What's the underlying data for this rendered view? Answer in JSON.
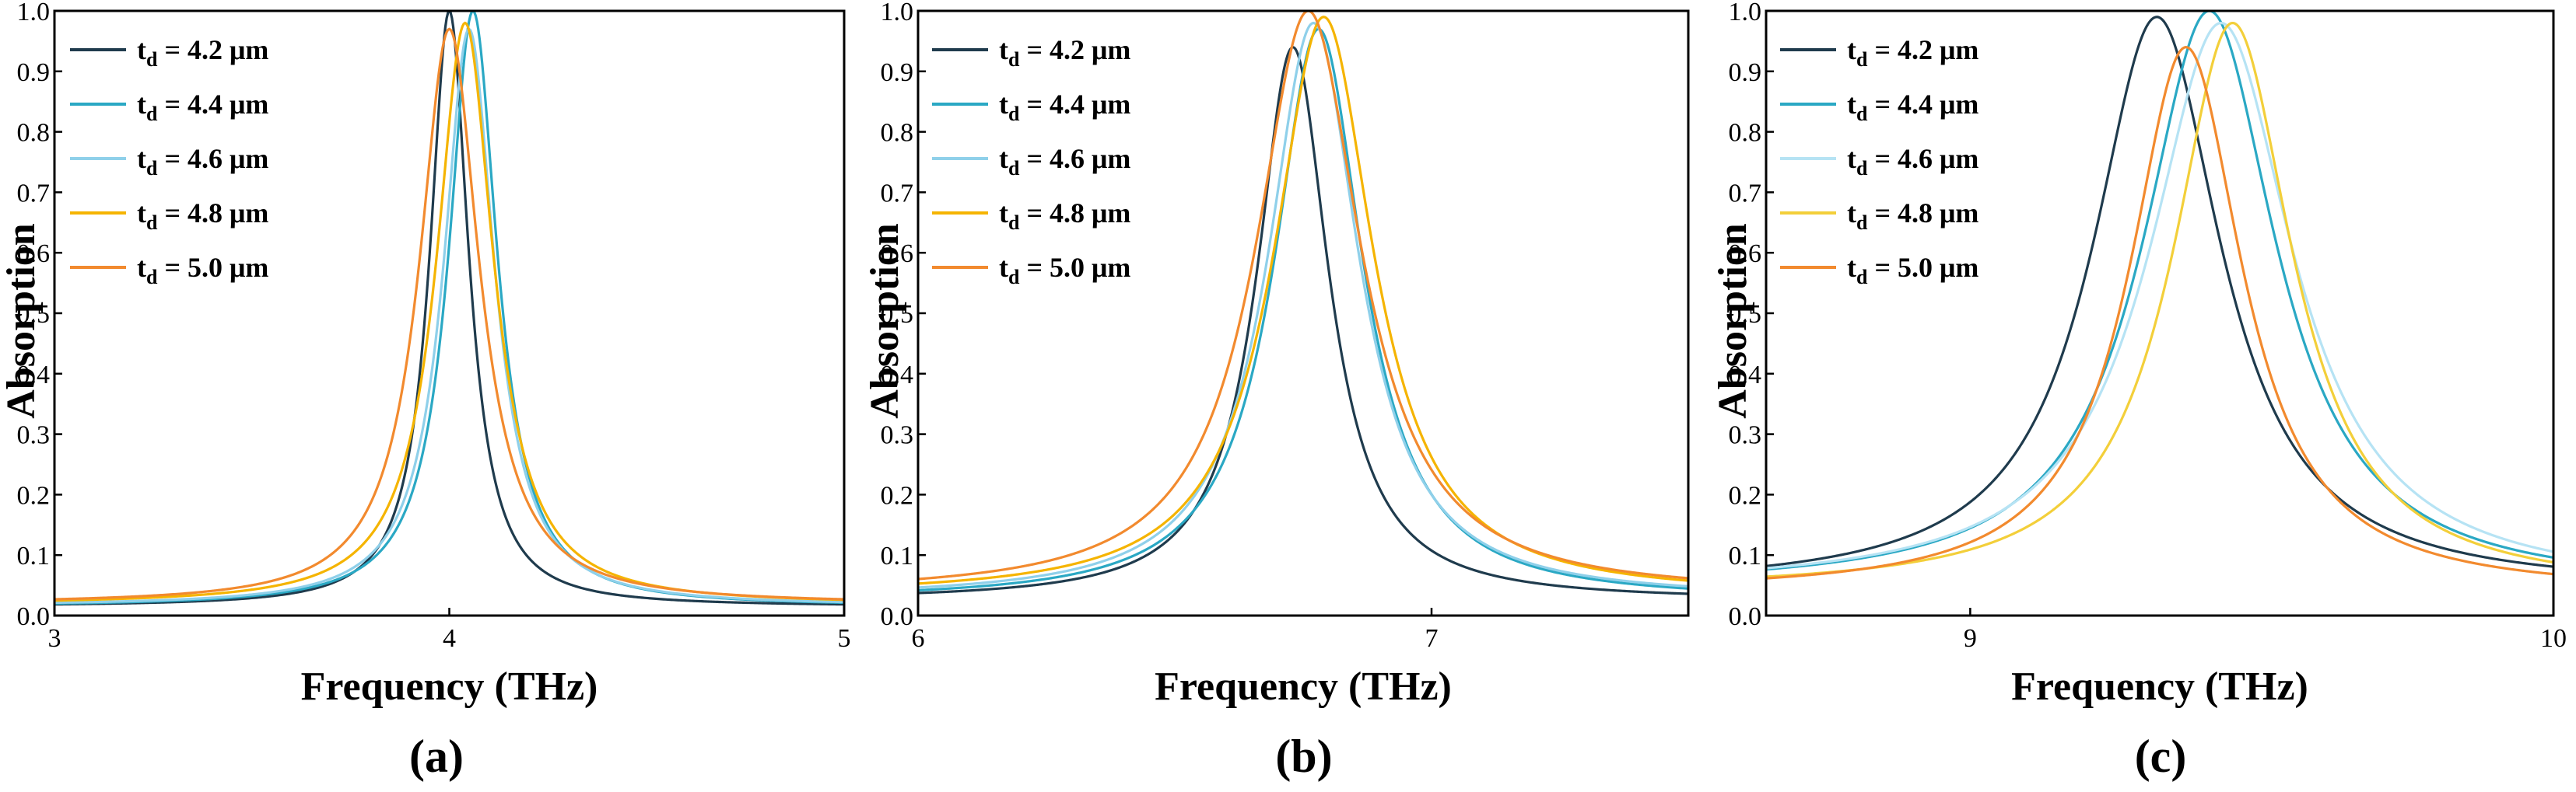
{
  "chart_data": [
    {
      "type": "line",
      "panel_label": "(a)",
      "xlabel": "Frequency (THz)",
      "ylabel": "Absorption",
      "xlim": [
        3,
        5
      ],
      "ylim": [
        0,
        1
      ],
      "xticks": [
        "3",
        "4",
        "5"
      ],
      "yticks": [
        "0.0",
        "0.1",
        "0.2",
        "0.3",
        "0.4",
        "0.5",
        "0.6",
        "0.7",
        "0.8",
        "0.9",
        "1.0"
      ],
      "legend_position": "top-left",
      "series": [
        {
          "name": "4.2",
          "color": "#1f3b4d",
          "f0": 4.0,
          "peak": 1.0,
          "gamma": 0.06,
          "base": 0.015
        },
        {
          "name": "4.4",
          "color": "#2aa8c4",
          "f0": 4.06,
          "peak": 1.0,
          "gamma": 0.075,
          "base": 0.015
        },
        {
          "name": "4.6",
          "color": "#8fd0ea",
          "f0": 4.05,
          "peak": 0.97,
          "gamma": 0.078,
          "base": 0.016
        },
        {
          "name": "4.8",
          "color": "#f5b400",
          "f0": 4.04,
          "peak": 0.98,
          "gamma": 0.088,
          "base": 0.018
        },
        {
          "name": "5.0",
          "color": "#f28a2e",
          "f0": 4.0,
          "peak": 0.97,
          "gamma": 0.092,
          "base": 0.019
        }
      ]
    },
    {
      "type": "line",
      "panel_label": "(b)",
      "xlabel": "Frequency (THz)",
      "ylabel": "Absorption",
      "xlim": [
        6,
        7.5
      ],
      "ylim": [
        0,
        1
      ],
      "xticks": [
        "6",
        "7"
      ],
      "yticks": [
        "0.0",
        "0.1",
        "0.2",
        "0.3",
        "0.4",
        "0.5",
        "0.6",
        "0.7",
        "0.8",
        "0.9",
        "1.0"
      ],
      "legend_position": "top-left",
      "series": [
        {
          "name": "4.2",
          "color": "#1f3b4d",
          "f0": 6.73,
          "peak": 0.94,
          "gamma": 0.085,
          "base": 0.025
        },
        {
          "name": "4.4",
          "color": "#2aa8c4",
          "f0": 6.78,
          "peak": 0.97,
          "gamma": 0.105,
          "base": 0.025
        },
        {
          "name": "4.6",
          "color": "#8fd0ea",
          "f0": 6.77,
          "peak": 0.98,
          "gamma": 0.108,
          "base": 0.028
        },
        {
          "name": "4.8",
          "color": "#f5b400",
          "f0": 6.79,
          "peak": 0.99,
          "gamma": 0.118,
          "base": 0.032
        },
        {
          "name": "5.0",
          "color": "#f28a2e",
          "f0": 6.76,
          "peak": 1.0,
          "gamma": 0.125,
          "base": 0.035
        }
      ]
    },
    {
      "type": "line",
      "panel_label": "(c)",
      "xlabel": "Frequency (THz)",
      "ylabel": "Absorption",
      "xlim": [
        8.65,
        10
      ],
      "ylim": [
        0,
        1
      ],
      "xticks": [
        "9",
        "10"
      ],
      "yticks": [
        "0.0",
        "0.1",
        "0.2",
        "0.3",
        "0.4",
        "0.5",
        "0.6",
        "0.7",
        "0.8",
        "0.9",
        "1.0"
      ],
      "legend_position": "top-left",
      "series": [
        {
          "name": "4.2",
          "color": "#1f3b4d",
          "f0": 9.32,
          "peak": 0.99,
          "gamma": 0.135,
          "base": 0.045
        },
        {
          "name": "4.4",
          "color": "#2aa8c4",
          "f0": 9.41,
          "peak": 1.0,
          "gamma": 0.14,
          "base": 0.045
        },
        {
          "name": "4.6",
          "color": "#b6e3f4",
          "f0": 9.43,
          "peak": 0.98,
          "gamma": 0.15,
          "base": 0.045
        },
        {
          "name": "4.8",
          "color": "#f3cf3a",
          "f0": 9.45,
          "peak": 0.98,
          "gamma": 0.125,
          "base": 0.042
        },
        {
          "name": "5.0",
          "color": "#f28a2e",
          "f0": 9.37,
          "peak": 0.94,
          "gamma": 0.118,
          "base": 0.038
        }
      ]
    }
  ],
  "legend": {
    "prefix": "t",
    "subscript": "d",
    "equals": " = ",
    "unit": " μm"
  }
}
